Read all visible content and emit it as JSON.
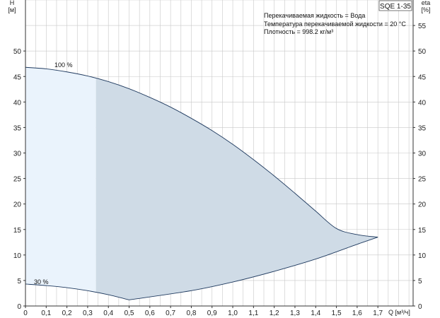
{
  "chart_data": {
    "type": "area",
    "model": "SQE 1-35",
    "y_left_label_line1": "H",
    "y_left_label_line2": "[м]",
    "y_right_label_line1": "eta",
    "y_right_label_line2": "[%]",
    "x_label": "Q [м³/ч]",
    "info_lines": [
      "Перекачиваемая жидкость = Вода",
      "Температура перекачиваемой жидкости = 20 °C",
      "Плотность = 998.2 кг/м³"
    ],
    "x_ticks": [
      "0",
      "0,1",
      "0,2",
      "0,3",
      "0,4",
      "0,5",
      "0,6",
      "0,7",
      "0,8",
      "0,9",
      "1,0",
      "1,1",
      "1,2",
      "1,3",
      "1,4",
      "1,5",
      "1,6",
      "1,7"
    ],
    "x_minor_step": 0.05,
    "xlim": [
      0,
      1.87
    ],
    "y_ticks": [
      0,
      5,
      10,
      15,
      20,
      25,
      30,
      35,
      40,
      45,
      50
    ],
    "y_right_ticks": [
      0,
      5,
      10,
      15,
      20,
      25,
      30,
      35,
      40,
      45,
      50,
      55
    ],
    "ylim": [
      0,
      60
    ],
    "grid": true,
    "series": [
      {
        "name": "100 %",
        "x": [
          0,
          0.1,
          0.2,
          0.3,
          0.4,
          0.5,
          0.6,
          0.7,
          0.8,
          0.9,
          1.0,
          1.1,
          1.2,
          1.3,
          1.4,
          1.5,
          1.6,
          1.7
        ],
        "values": [
          46.8,
          46.5,
          45.9,
          45.1,
          44.0,
          42.6,
          40.9,
          39.0,
          36.8,
          34.4,
          31.7,
          28.7,
          25.5,
          22.1,
          18.6,
          15.2,
          14.0,
          13.5
        ]
      },
      {
        "name": "30 %",
        "x": [
          0,
          0.1,
          0.2,
          0.3,
          0.4,
          0.5
        ],
        "values": [
          4.3,
          4.0,
          3.6,
          3.0,
          2.2,
          1.2
        ]
      }
    ],
    "boundary_lower": {
      "x": [
        0.5,
        0.8,
        1.0,
        1.2,
        1.4,
        1.6,
        1.7
      ],
      "values": [
        1.2,
        3.0,
        4.7,
        6.8,
        9.2,
        12.1,
        13.5
      ]
    },
    "region_split_x": 0.34,
    "colors": {
      "region_light": "#eaf3fc",
      "region_dark": "#cfdbe6",
      "curve": "#1f3a5f",
      "grid": "#c8c8c8",
      "axis": "#333333"
    }
  }
}
